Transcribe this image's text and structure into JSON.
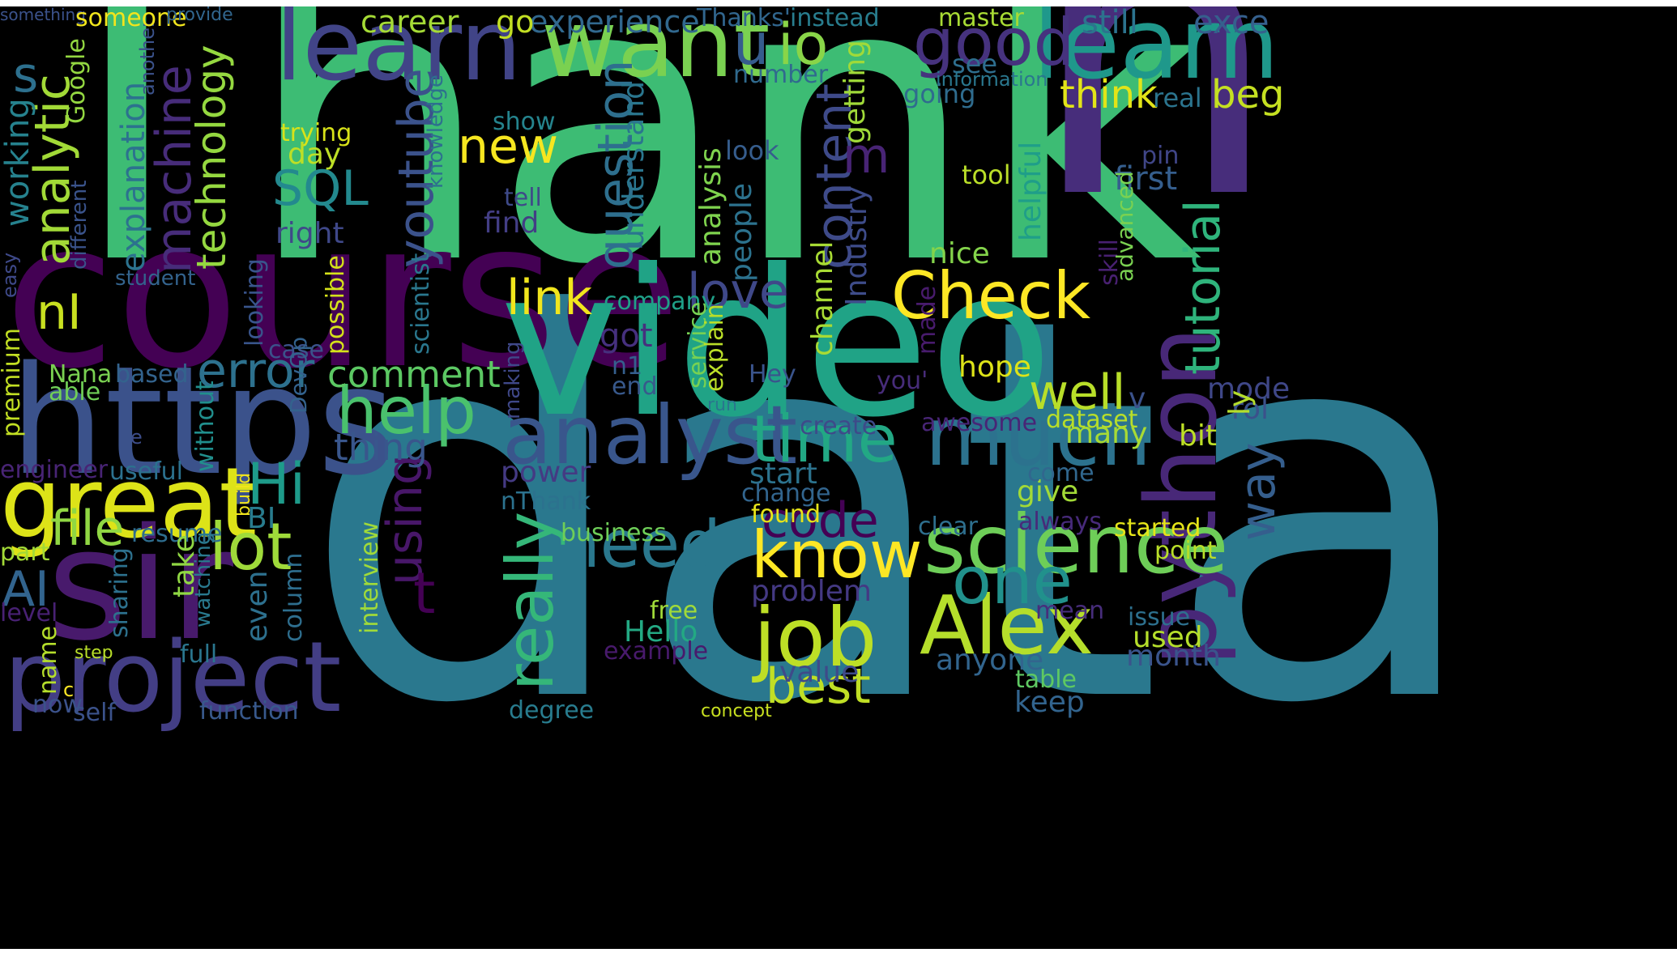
{
  "words": [
    {
      "text": "Thank",
      "color": "#3dbc74"
    },
    {
      "text": "n",
      "color": "#472d7b"
    },
    {
      "text": "data",
      "color": "#2a788e"
    },
    {
      "text": "course",
      "color": "#440154"
    },
    {
      "text": "video",
      "color": "#20a386"
    },
    {
      "text": "https",
      "color": "#3b528b"
    },
    {
      "text": "sir",
      "color": "#481a6c"
    },
    {
      "text": "great",
      "color": "#dde318"
    },
    {
      "text": "project",
      "color": "#433e85"
    },
    {
      "text": "learn",
      "color": "#414487"
    },
    {
      "text": "want",
      "color": "#7ad151"
    },
    {
      "text": "learn",
      "color": "#1f988b"
    },
    {
      "text": "python",
      "color": "#482878"
    },
    {
      "text": "analyst",
      "color": "#39568c"
    },
    {
      "text": "much",
      "color": "#2c728e"
    },
    {
      "text": "science",
      "color": "#6ece58"
    },
    {
      "text": "Alex",
      "color": "#b5de2b"
    },
    {
      "text": "job",
      "color": "#bddf26"
    },
    {
      "text": "know",
      "color": "#fde725"
    },
    {
      "text": "Check",
      "color": "#fde725"
    },
    {
      "text": "time",
      "color": "#22a884"
    },
    {
      "text": "good",
      "color": "#46327e"
    },
    {
      "text": "help",
      "color": "#4ac16d"
    },
    {
      "text": "really",
      "color": "#35b779"
    },
    {
      "text": "lot",
      "color": "#9fda3a"
    },
    {
      "text": "need",
      "color": "#2a788e"
    },
    {
      "text": "one",
      "color": "#21918c"
    },
    {
      "text": "code",
      "color": "#440154"
    },
    {
      "text": "best",
      "color": "#c0df25"
    },
    {
      "text": "Hi",
      "color": "#1e9b8a"
    },
    {
      "text": "file",
      "color": "#90d743"
    },
    {
      "text": "AI",
      "color": "#32648e"
    },
    {
      "text": "error",
      "color": "#2d718e"
    },
    {
      "text": "analytic",
      "color": "#a2da37"
    },
    {
      "text": "machine",
      "color": "#472c7a"
    },
    {
      "text": "technology",
      "color": "#95d840"
    },
    {
      "text": "SQL",
      "color": "#23898e"
    },
    {
      "text": "youtube",
      "color": "#3b528b"
    },
    {
      "text": "question",
      "color": "#2e6f8e"
    },
    {
      "text": "content",
      "color": "#3e4a89"
    },
    {
      "text": "tutorial",
      "color": "#2fb47c"
    },
    {
      "text": "well",
      "color": "#b8de29"
    },
    {
      "text": "love",
      "color": "#3f4889"
    },
    {
      "text": "link",
      "color": "#f1e51d"
    },
    {
      "text": "new",
      "color": "#f6e620"
    },
    {
      "text": "using",
      "color": "#481769"
    },
    {
      "text": "comment",
      "color": "#5cc863"
    },
    {
      "text": "thing",
      "color": "#39568c"
    },
    {
      "text": "u",
      "color": "#365c8d"
    },
    {
      "text": "io",
      "color": "#89d548"
    },
    {
      "text": "m",
      "color": "#482475"
    },
    {
      "text": "nI",
      "color": "#c8e020"
    },
    {
      "text": "t",
      "color": "#440154"
    },
    {
      "text": "s",
      "color": "#2d708e"
    },
    {
      "text": "explanation",
      "color": "#2c728e"
    },
    {
      "text": "working",
      "color": "#26828e"
    },
    {
      "text": "career",
      "color": "#a5db36"
    },
    {
      "text": "experience",
      "color": "#31688e"
    },
    {
      "text": "go",
      "color": "#c2df23"
    },
    {
      "text": "Thanks'",
      "color": "#31668e"
    },
    {
      "text": "instead",
      "color": "#287d8e"
    },
    {
      "text": "master",
      "color": "#a8db34"
    },
    {
      "text": "still",
      "color": "#2c738e"
    },
    {
      "text": "exce",
      "color": "#35608d"
    },
    {
      "text": "see",
      "color": "#2e6e8e"
    },
    {
      "text": "number",
      "color": "#306a8e"
    },
    {
      "text": "information",
      "color": "#2a778e"
    },
    {
      "text": "going",
      "color": "#2f6c8e"
    },
    {
      "text": "think",
      "color": "#e2e418"
    },
    {
      "text": "real",
      "color": "#2b748e"
    },
    {
      "text": "beg",
      "color": "#c5e021"
    },
    {
      "text": "understand",
      "color": "#2a768e"
    },
    {
      "text": "getting",
      "color": "#a0da39"
    },
    {
      "text": "Industry",
      "color": "#3e4c8a"
    },
    {
      "text": "channel",
      "color": "#a8db34"
    },
    {
      "text": "analysis",
      "color": "#7fd34e"
    },
    {
      "text": "people",
      "color": "#2c728e"
    },
    {
      "text": "look",
      "color": "#365d8d"
    },
    {
      "text": "tool",
      "color": "#bade28"
    },
    {
      "text": "first",
      "color": "#355e8d"
    },
    {
      "text": "pin",
      "color": "#404688"
    },
    {
      "text": "helpful",
      "color": "#1f9e89"
    },
    {
      "text": "nice",
      "color": "#84d44b"
    },
    {
      "text": "skill",
      "color": "#482071"
    },
    {
      "text": "advanced",
      "color": "#7ad151"
    },
    {
      "text": "show",
      "color": "#25848e"
    },
    {
      "text": "trying",
      "color": "#d8e219"
    },
    {
      "text": "day",
      "color": "#bddf26"
    },
    {
      "text": "find",
      "color": "#433e85"
    },
    {
      "text": "tell",
      "color": "#3e4a89"
    },
    {
      "text": "right",
      "color": "#3f4889"
    },
    {
      "text": "Google",
      "color": "#93d741"
    },
    {
      "text": "another",
      "color": "#3b528b"
    },
    {
      "text": "different",
      "color": "#3a538b"
    },
    {
      "text": "knowledge",
      "color": "#2d708e"
    },
    {
      "text": "easy",
      "color": "#3e4989"
    },
    {
      "text": "student",
      "color": "#33638d"
    },
    {
      "text": "case",
      "color": "#3b528b"
    },
    {
      "text": "DevOp",
      "color": "#33628d"
    },
    {
      "text": "possible",
      "color": "#d5e21a"
    },
    {
      "text": "looking",
      "color": "#39558c"
    },
    {
      "text": "scientist",
      "color": "#2a778e"
    },
    {
      "text": "company",
      "color": "#1fa088"
    },
    {
      "text": "got",
      "color": "#46307e"
    },
    {
      "text": "n1",
      "color": "#355f8d"
    },
    {
      "text": "end",
      "color": "#38598c"
    },
    {
      "text": "service",
      "color": "#77d153"
    },
    {
      "text": "explain",
      "color": "#bade28"
    },
    {
      "text": "Hey",
      "color": "#3a548c"
    },
    {
      "text": "made",
      "color": "#481b6d"
    },
    {
      "text": "you'",
      "color": "#472c7a"
    },
    {
      "text": "hope",
      "color": "#dde318"
    },
    {
      "text": "v",
      "color": "#3b528b"
    },
    {
      "text": "mode",
      "color": "#3f4788"
    },
    {
      "text": "rol",
      "color": "#3b518b"
    },
    {
      "text": "way",
      "color": "#355e8d"
    },
    {
      "text": "ly",
      "color": "#b5de2b"
    },
    {
      "text": "premium",
      "color": "#c2df23"
    },
    {
      "text": "Nana",
      "color": "#7ad151"
    },
    {
      "text": "able",
      "color": "#70cf57"
    },
    {
      "text": "based",
      "color": "#33638d"
    },
    {
      "text": "e",
      "color": "#3d4d8a"
    },
    {
      "text": "without",
      "color": "#218f8d"
    },
    {
      "text": "making",
      "color": "#3f4889"
    },
    {
      "text": "run",
      "color": "#2a768e"
    },
    {
      "text": "create",
      "color": "#3e4a89"
    },
    {
      "text": "awesome",
      "color": "#482576"
    },
    {
      "text": "dataset",
      "color": "#b8de29"
    },
    {
      "text": "bit",
      "color": "#bddf26"
    },
    {
      "text": "many",
      "color": "#a8db34"
    },
    {
      "text": "engineer",
      "color": "#482475"
    },
    {
      "text": "useful",
      "color": "#2c718e"
    },
    {
      "text": "power",
      "color": "#443a83"
    },
    {
      "text": "start",
      "color": "#2c738e"
    },
    {
      "text": "change",
      "color": "#32658e"
    },
    {
      "text": "give",
      "color": "#a2da37"
    },
    {
      "text": "come",
      "color": "#31678e"
    },
    {
      "text": "nThank",
      "color": "#2c728e"
    },
    {
      "text": "found",
      "color": "#e7e419"
    },
    {
      "text": "build",
      "color": "#f1e51d"
    },
    {
      "text": "BI",
      "color": "#287c8e"
    },
    {
      "text": "resume",
      "color": "#2e6d8e"
    },
    {
      "text": "business",
      "color": "#6ece58"
    },
    {
      "text": "clear",
      "color": "#2e6f8e"
    },
    {
      "text": "always",
      "color": "#472a7a"
    },
    {
      "text": "started",
      "color": "#e5e419"
    },
    {
      "text": "point",
      "color": "#b8de29"
    },
    {
      "text": "part",
      "color": "#a2da37"
    },
    {
      "text": "take",
      "color": "#90d743"
    },
    {
      "text": "interview",
      "color": "#a0da39"
    },
    {
      "text": "problem",
      "color": "#443983"
    },
    {
      "text": "mean",
      "color": "#472d7b"
    },
    {
      "text": "issue",
      "color": "#2d708e"
    },
    {
      "text": "used",
      "color": "#b5de2b"
    },
    {
      "text": "level",
      "color": "#482173"
    },
    {
      "text": "sharing",
      "color": "#2d718e"
    },
    {
      "text": "watching",
      "color": "#29798e"
    },
    {
      "text": "even",
      "color": "#2d708e"
    },
    {
      "text": "column",
      "color": "#2e6e8e"
    },
    {
      "text": "free",
      "color": "#a0da39"
    },
    {
      "text": "Hello",
      "color": "#23a983"
    },
    {
      "text": "example",
      "color": "#481a6c"
    },
    {
      "text": "anyone",
      "color": "#32658e"
    },
    {
      "text": "month",
      "color": "#3a548c"
    },
    {
      "text": "name",
      "color": "#b5de2b"
    },
    {
      "text": "step",
      "color": "#b8de29"
    },
    {
      "text": "full",
      "color": "#2a768e"
    },
    {
      "text": "value",
      "color": "#3e4a89"
    },
    {
      "text": "table",
      "color": "#5ec962"
    },
    {
      "text": "keep",
      "color": "#32648e"
    },
    {
      "text": "c",
      "color": "#fde725"
    },
    {
      "text": "now",
      "color": "#3b528b"
    },
    {
      "text": "self",
      "color": "#3b528b"
    },
    {
      "text": "function",
      "color": "#38598c"
    },
    {
      "text": "degree",
      "color": "#287c8e"
    },
    {
      "text": "concept",
      "color": "#c8e020"
    },
    {
      "text": "something",
      "color": "#3b528b"
    },
    {
      "text": "someone",
      "color": "#f1e51d"
    },
    {
      "text": "provide",
      "color": "#31668e"
    }
  ]
}
